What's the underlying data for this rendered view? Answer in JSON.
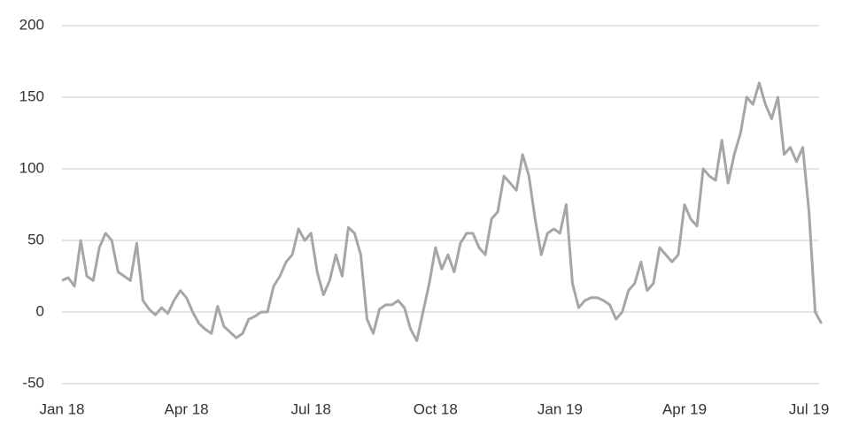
{
  "chart_data": {
    "type": "line",
    "categories": [
      "Jan 18",
      null,
      null,
      null,
      null,
      null,
      null,
      null,
      null,
      null,
      null,
      null,
      null,
      null,
      null,
      null,
      null,
      null,
      null,
      null,
      "Apr 18",
      null,
      null,
      null,
      null,
      null,
      null,
      null,
      null,
      null,
      null,
      null,
      null,
      null,
      null,
      null,
      null,
      null,
      null,
      null,
      "Jul 18",
      null,
      null,
      null,
      null,
      null,
      null,
      null,
      null,
      null,
      null,
      null,
      null,
      null,
      null,
      null,
      null,
      null,
      null,
      null,
      "Oct 18",
      null,
      null,
      null,
      null,
      null,
      null,
      null,
      null,
      null,
      null,
      null,
      null,
      null,
      null,
      null,
      null,
      null,
      null,
      null,
      "Jan 19",
      null,
      null,
      null,
      null,
      null,
      null,
      null,
      null,
      null,
      null,
      null,
      null,
      null,
      null,
      null,
      null,
      null,
      null,
      null,
      "Apr 19",
      null,
      null,
      null,
      null,
      null,
      null,
      null,
      null,
      null,
      null,
      null,
      null,
      null,
      null,
      null,
      null,
      null,
      null,
      null,
      "Jul 19",
      null,
      null
    ],
    "series": [
      {
        "color": "#a6a6a6",
        "values": [
          22,
          24,
          18,
          50,
          25,
          22,
          45,
          55,
          50,
          28,
          25,
          22,
          48,
          8,
          2,
          -2,
          3,
          -1,
          8,
          15,
          10,
          0,
          -8,
          -12,
          -15,
          4,
          -10,
          -14,
          -18,
          -15,
          -5,
          -3,
          0,
          0,
          18,
          25,
          35,
          40,
          58,
          50,
          55,
          28,
          12,
          22,
          40,
          25,
          59,
          55,
          40,
          -5,
          -15,
          2,
          5,
          5,
          8,
          3,
          -12,
          -20,
          0,
          20,
          45,
          30,
          40,
          28,
          48,
          55,
          55,
          45,
          40,
          65,
          70,
          95,
          90,
          85,
          110,
          95,
          65,
          40,
          55,
          58,
          55,
          75,
          20,
          3,
          8,
          10,
          10,
          8,
          5,
          -5,
          0,
          15,
          20,
          35,
          15,
          20,
          45,
          40,
          35,
          40,
          75,
          65,
          60,
          100,
          95,
          92,
          120,
          90,
          110,
          125,
          150,
          145,
          160,
          145,
          135,
          150,
          110,
          115,
          105,
          115,
          70,
          0,
          -8
        ]
      }
    ],
    "ylim": [
      -50,
      200
    ],
    "yticks": [
      -50,
      0,
      50,
      100,
      150,
      200
    ],
    "grid": true
  }
}
